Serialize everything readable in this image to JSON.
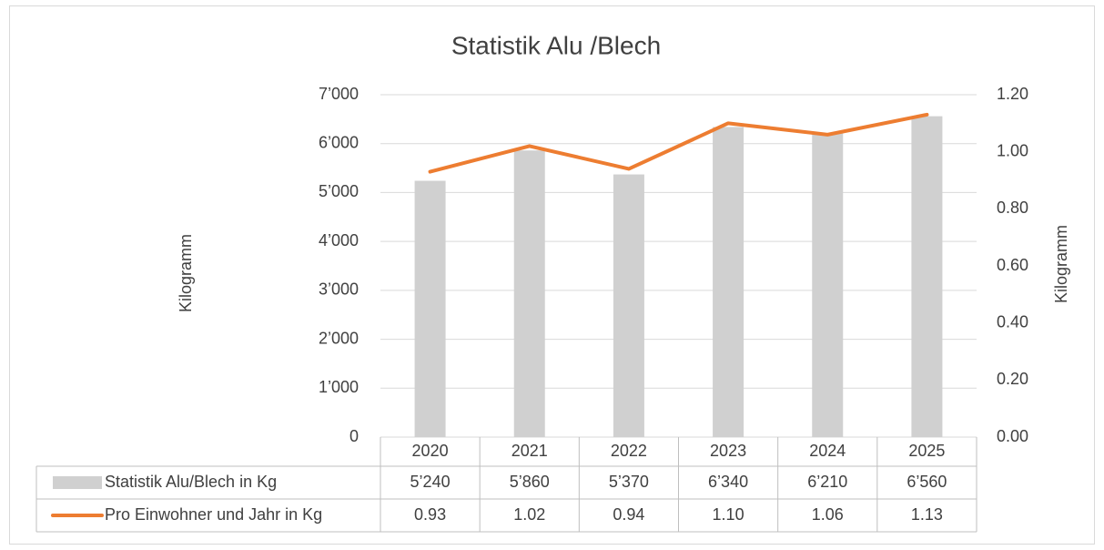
{
  "chart_data": {
    "type": "bar",
    "title": "Statistik Alu /Blech",
    "y_label": "Kilogramm",
    "y2_label": "Kilogramm",
    "categories": [
      "2020",
      "2021",
      "2022",
      "2023",
      "2024",
      "2025"
    ],
    "series": [
      {
        "name": "Statistik Alu/Blech in Kg",
        "type": "bar",
        "color": "#d0d0d0",
        "values": [
          5240,
          5860,
          5370,
          6340,
          6210,
          6560
        ],
        "value_labels": [
          "5’240",
          "5’860",
          "5’370",
          "6’340",
          "6’210",
          "6’560"
        ]
      },
      {
        "name": "Pro Einwohner und Jahr in Kg",
        "type": "line",
        "axis": "y2",
        "color": "#ed7d31",
        "values": [
          0.93,
          1.02,
          0.94,
          1.1,
          1.06,
          1.13
        ],
        "value_labels": [
          "0.93",
          "1.02",
          "0.94",
          "1.10",
          "1.06",
          "1.13"
        ]
      }
    ],
    "ylim": [
      0,
      7000
    ],
    "yticks": [
      0,
      {
        "value": 1000,
        "label": "1’000"
      },
      {
        "value": 2000,
        "label": "2’000"
      },
      {
        "value": 3000,
        "label": "3’000"
      },
      {
        "value": 4000,
        "label": "4’000"
      },
      {
        "value": 5000,
        "label": "5’000"
      },
      {
        "value": 6000,
        "label": "6’000"
      },
      {
        "value": 7000,
        "label": "7’000"
      }
    ],
    "y2lim": [
      0,
      1.2
    ],
    "y2ticks": [
      {
        "value": 0,
        "label": "0.00"
      },
      {
        "value": 0.2,
        "label": "0.20"
      },
      {
        "value": 0.4,
        "label": "0.40"
      },
      {
        "value": 0.6,
        "label": "0.60"
      },
      {
        "value": 0.8,
        "label": "0.80"
      },
      {
        "value": 1,
        "label": "1.00"
      },
      {
        "value": 1.2,
        "label": "1.20"
      }
    ],
    "grid": true
  }
}
